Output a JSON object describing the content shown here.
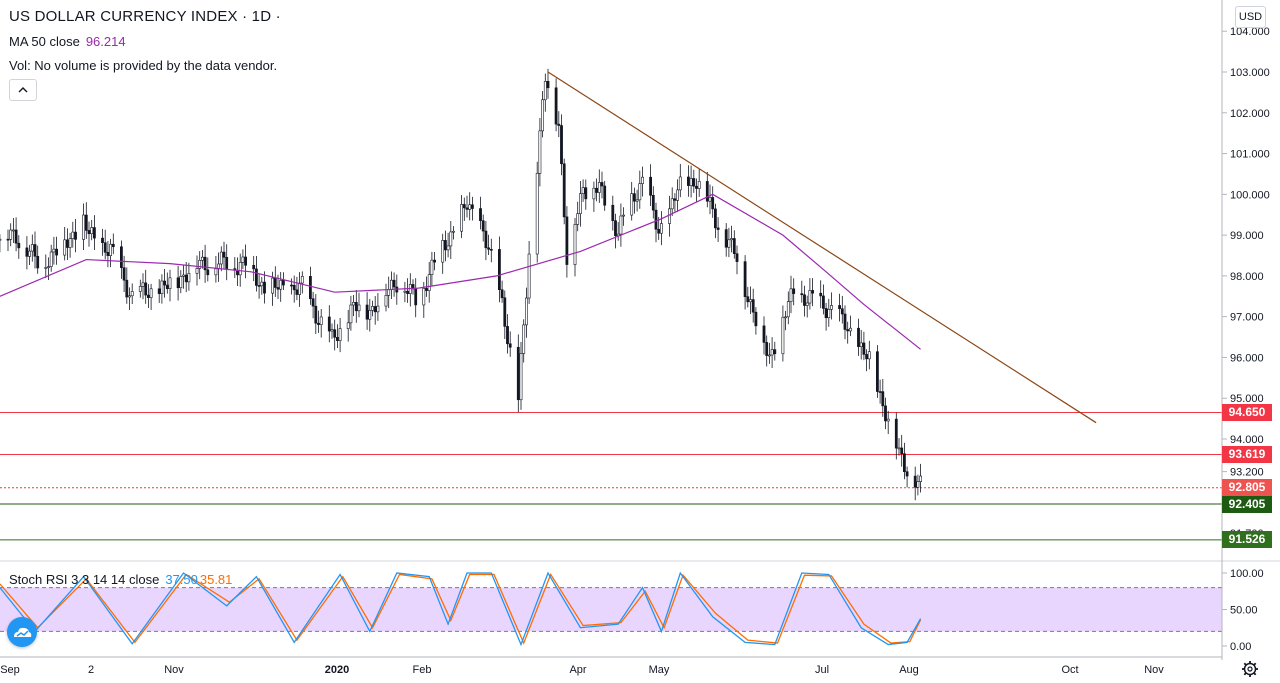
{
  "header": {
    "title": "US DOLLAR CURRENCY INDEX · 1D ·",
    "ma_label": "MA 50 close",
    "ma_value": "96.214",
    "vol_text": "Vol: No volume is provided by the data vendor.",
    "rsi_label": "Stoch RSI 3 3 14 14 close",
    "rsi_k": "37.50",
    "rsi_d": "35.81",
    "currency_button": "USD",
    "collapse_icon": "chevron-up-icon"
  },
  "price_tags": [
    {
      "text": "94.650",
      "color": "#f23645"
    },
    {
      "text": "93.619",
      "color": "#f23645"
    },
    {
      "text": "92.805",
      "color": "#ef5350"
    },
    {
      "text": "92.405",
      "color": "#1e5b12"
    },
    {
      "text": "91.526",
      "color": "#2f6f1e"
    }
  ],
  "chart_data": {
    "type": "candlestick",
    "title": "US DOLLAR CURRENCY INDEX",
    "interval": "1D",
    "y_axis": {
      "ticks": [
        "104.000",
        "103.000",
        "102.000",
        "101.000",
        "100.000",
        "99.000",
        "98.000",
        "97.000",
        "96.000",
        "95.000",
        "94.000",
        "93.200"
      ],
      "partial_tick": "91.700",
      "range": [
        91.3,
        104.7
      ]
    },
    "x_axis": {
      "ticks": [
        "Sep",
        "2",
        "Nov",
        "2020",
        "Feb",
        "Apr",
        "May",
        "Jul",
        "Aug",
        "Oct",
        "Nov"
      ]
    },
    "close_series": [
      {
        "date": "2019-08-30",
        "close": 98.9
      },
      {
        "date": "2019-09-05",
        "close": 99.0
      },
      {
        "date": "2019-09-13",
        "close": 98.3
      },
      {
        "date": "2019-09-20",
        "close": 98.6
      },
      {
        "date": "2019-09-30",
        "close": 99.3
      },
      {
        "date": "2019-10-02",
        "close": 99.0
      },
      {
        "date": "2019-10-10",
        "close": 98.6
      },
      {
        "date": "2019-10-18",
        "close": 97.5
      },
      {
        "date": "2019-10-30",
        "close": 97.7
      },
      {
        "date": "2019-11-12",
        "close": 98.3
      },
      {
        "date": "2019-11-22",
        "close": 98.3
      },
      {
        "date": "2019-11-29",
        "close": 98.3
      },
      {
        "date": "2019-12-06",
        "close": 97.7
      },
      {
        "date": "2019-12-20",
        "close": 97.7
      },
      {
        "date": "2019-12-31",
        "close": 96.4
      },
      {
        "date": "2020-01-08",
        "close": 97.2
      },
      {
        "date": "2020-01-15",
        "close": 97.2
      },
      {
        "date": "2020-01-24",
        "close": 97.9
      },
      {
        "date": "2020-01-31",
        "close": 97.4
      },
      {
        "date": "2020-02-10",
        "close": 98.7
      },
      {
        "date": "2020-02-19",
        "close": 99.7
      },
      {
        "date": "2020-02-24",
        "close": 99.3
      },
      {
        "date": "2020-03-03",
        "close": 97.4
      },
      {
        "date": "2020-03-09",
        "close": 94.9
      },
      {
        "date": "2020-03-13",
        "close": 98.6
      },
      {
        "date": "2020-03-19",
        "close": 102.8
      },
      {
        "date": "2020-03-24",
        "close": 101.8
      },
      {
        "date": "2020-03-27",
        "close": 98.4
      },
      {
        "date": "2020-04-02",
        "close": 100.2
      },
      {
        "date": "2020-04-08",
        "close": 100.1
      },
      {
        "date": "2020-04-15",
        "close": 99.1
      },
      {
        "date": "2020-04-24",
        "close": 100.4
      },
      {
        "date": "2020-04-30",
        "close": 99.0
      },
      {
        "date": "2020-05-07",
        "close": 100.1
      },
      {
        "date": "2020-05-14",
        "close": 100.4
      },
      {
        "date": "2020-05-21",
        "close": 99.4
      },
      {
        "date": "2020-05-29",
        "close": 98.4
      },
      {
        "date": "2020-06-05",
        "close": 96.9
      },
      {
        "date": "2020-06-10",
        "close": 96.0
      },
      {
        "date": "2020-06-19",
        "close": 97.6
      },
      {
        "date": "2020-06-26",
        "close": 97.4
      },
      {
        "date": "2020-07-03",
        "close": 97.2
      },
      {
        "date": "2020-07-10",
        "close": 96.6
      },
      {
        "date": "2020-07-17",
        "close": 95.9
      },
      {
        "date": "2020-07-23",
        "close": 94.7
      },
      {
        "date": "2020-07-28",
        "close": 93.6
      },
      {
        "date": "2020-07-31",
        "close": 93.3
      },
      {
        "date": "2020-08-05",
        "close": 92.8
      }
    ],
    "ma50": {
      "name": "MA 50 close",
      "points": [
        {
          "date": "2019-08-30",
          "value": 97.5
        },
        {
          "date": "2019-10-01",
          "value": 98.4
        },
        {
          "date": "2019-11-01",
          "value": 98.3
        },
        {
          "date": "2019-12-01",
          "value": 98.1
        },
        {
          "date": "2020-01-01",
          "value": 97.6
        },
        {
          "date": "2020-02-01",
          "value": 97.7
        },
        {
          "date": "2020-03-01",
          "value": 98.0
        },
        {
          "date": "2020-04-01",
          "value": 98.6
        },
        {
          "date": "2020-05-01",
          "value": 99.4
        },
        {
          "date": "2020-05-20",
          "value": 100.0
        },
        {
          "date": "2020-06-15",
          "value": 99.0
        },
        {
          "date": "2020-07-01",
          "value": 98.1
        },
        {
          "date": "2020-07-15",
          "value": 97.3
        },
        {
          "date": "2020-08-05",
          "value": 96.2
        }
      ]
    },
    "trendline": [
      {
        "date": "2020-03-20",
        "value": 103.0
      },
      {
        "date": "2020-10-09",
        "value": 94.4
      }
    ],
    "horizontal_lines": [
      {
        "value": 94.65,
        "color": "#f23645",
        "style": "solid"
      },
      {
        "value": 93.619,
        "color": "#f23645",
        "style": "solid"
      },
      {
        "value": 92.805,
        "color": "#f23645",
        "style": "dotted"
      },
      {
        "value": 92.405,
        "color": "#1e5b12",
        "style": "solid"
      },
      {
        "value": 91.526,
        "color": "#2f6f1e",
        "style": "solid"
      }
    ],
    "stoch_rsi": {
      "y_ticks": [
        "100.00",
        "50.00",
        "0.00"
      ],
      "bands": [
        20,
        80
      ],
      "k_value": 37.5,
      "d_value": 35.81,
      "k_series": [
        {
          "date": "2019-08-30",
          "value": 80
        },
        {
          "date": "2019-09-12",
          "value": 20
        },
        {
          "date": "2019-09-30",
          "value": 95
        },
        {
          "date": "2019-10-18",
          "value": 3
        },
        {
          "date": "2019-11-06",
          "value": 100
        },
        {
          "date": "2019-11-22",
          "value": 55
        },
        {
          "date": "2019-12-03",
          "value": 95
        },
        {
          "date": "2019-12-17",
          "value": 5
        },
        {
          "date": "2020-01-03",
          "value": 98
        },
        {
          "date": "2020-01-14",
          "value": 20
        },
        {
          "date": "2020-01-24",
          "value": 100
        },
        {
          "date": "2020-02-05",
          "value": 95
        },
        {
          "date": "2020-02-12",
          "value": 30
        },
        {
          "date": "2020-02-19",
          "value": 100
        },
        {
          "date": "2020-02-28",
          "value": 100
        },
        {
          "date": "2020-03-10",
          "value": 2
        },
        {
          "date": "2020-03-20",
          "value": 100
        },
        {
          "date": "2020-04-01",
          "value": 25
        },
        {
          "date": "2020-04-15",
          "value": 30
        },
        {
          "date": "2020-04-24",
          "value": 80
        },
        {
          "date": "2020-05-01",
          "value": 20
        },
        {
          "date": "2020-05-08",
          "value": 100
        },
        {
          "date": "2020-05-20",
          "value": 40
        },
        {
          "date": "2020-06-01",
          "value": 5
        },
        {
          "date": "2020-06-12",
          "value": 2
        },
        {
          "date": "2020-06-22",
          "value": 100
        },
        {
          "date": "2020-07-02",
          "value": 98
        },
        {
          "date": "2020-07-14",
          "value": 25
        },
        {
          "date": "2020-07-24",
          "value": 2
        },
        {
          "date": "2020-07-31",
          "value": 5
        },
        {
          "date": "2020-08-05",
          "value": 37.5
        }
      ],
      "d_series": [
        {
          "date": "2019-08-30",
          "value": 85
        },
        {
          "date": "2019-09-13",
          "value": 25
        },
        {
          "date": "2019-10-01",
          "value": 92
        },
        {
          "date": "2019-10-19",
          "value": 5
        },
        {
          "date": "2019-11-07",
          "value": 98
        },
        {
          "date": "2019-11-23",
          "value": 60
        },
        {
          "date": "2019-12-04",
          "value": 92
        },
        {
          "date": "2019-12-18",
          "value": 8
        },
        {
          "date": "2020-01-04",
          "value": 95
        },
        {
          "date": "2020-01-15",
          "value": 25
        },
        {
          "date": "2020-01-25",
          "value": 98
        },
        {
          "date": "2020-02-06",
          "value": 92
        },
        {
          "date": "2020-02-13",
          "value": 35
        },
        {
          "date": "2020-02-20",
          "value": 98
        },
        {
          "date": "2020-02-29",
          "value": 98
        },
        {
          "date": "2020-03-11",
          "value": 4
        },
        {
          "date": "2020-03-21",
          "value": 98
        },
        {
          "date": "2020-04-02",
          "value": 28
        },
        {
          "date": "2020-04-16",
          "value": 32
        },
        {
          "date": "2020-04-25",
          "value": 75
        },
        {
          "date": "2020-05-02",
          "value": 25
        },
        {
          "date": "2020-05-09",
          "value": 97
        },
        {
          "date": "2020-05-21",
          "value": 45
        },
        {
          "date": "2020-06-02",
          "value": 8
        },
        {
          "date": "2020-06-13",
          "value": 4
        },
        {
          "date": "2020-06-23",
          "value": 97
        },
        {
          "date": "2020-07-03",
          "value": 96
        },
        {
          "date": "2020-07-15",
          "value": 30
        },
        {
          "date": "2020-07-25",
          "value": 4
        },
        {
          "date": "2020-08-01",
          "value": 6
        },
        {
          "date": "2020-08-05",
          "value": 35.81
        }
      ]
    }
  }
}
